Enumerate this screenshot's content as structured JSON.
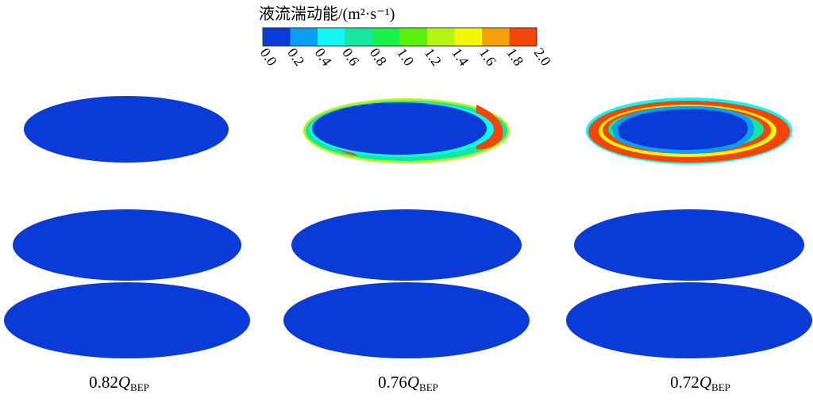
{
  "colorbar": {
    "title": "液流湍动能/(m²·s⁻¹)",
    "colors": [
      "#0a3bd6",
      "#0a9ff0",
      "#12f5f0",
      "#14e6a0",
      "#1ef04a",
      "#5cf00e",
      "#b4f514",
      "#f5f50a",
      "#f5a00a",
      "#f0460a"
    ],
    "ticks": [
      "0.0",
      "0.2",
      "0.4",
      "0.6",
      "0.8",
      "1.0",
      "1.2",
      "1.4",
      "1.6",
      "1.8",
      "2.0"
    ]
  },
  "columns": [
    {
      "factor": "0.82",
      "symbol": "Q",
      "subscript": "BEP"
    },
    {
      "factor": "0.76",
      "symbol": "Q",
      "subscript": "BEP"
    },
    {
      "factor": "0.72",
      "symbol": "Q",
      "subscript": "BEP"
    }
  ]
}
